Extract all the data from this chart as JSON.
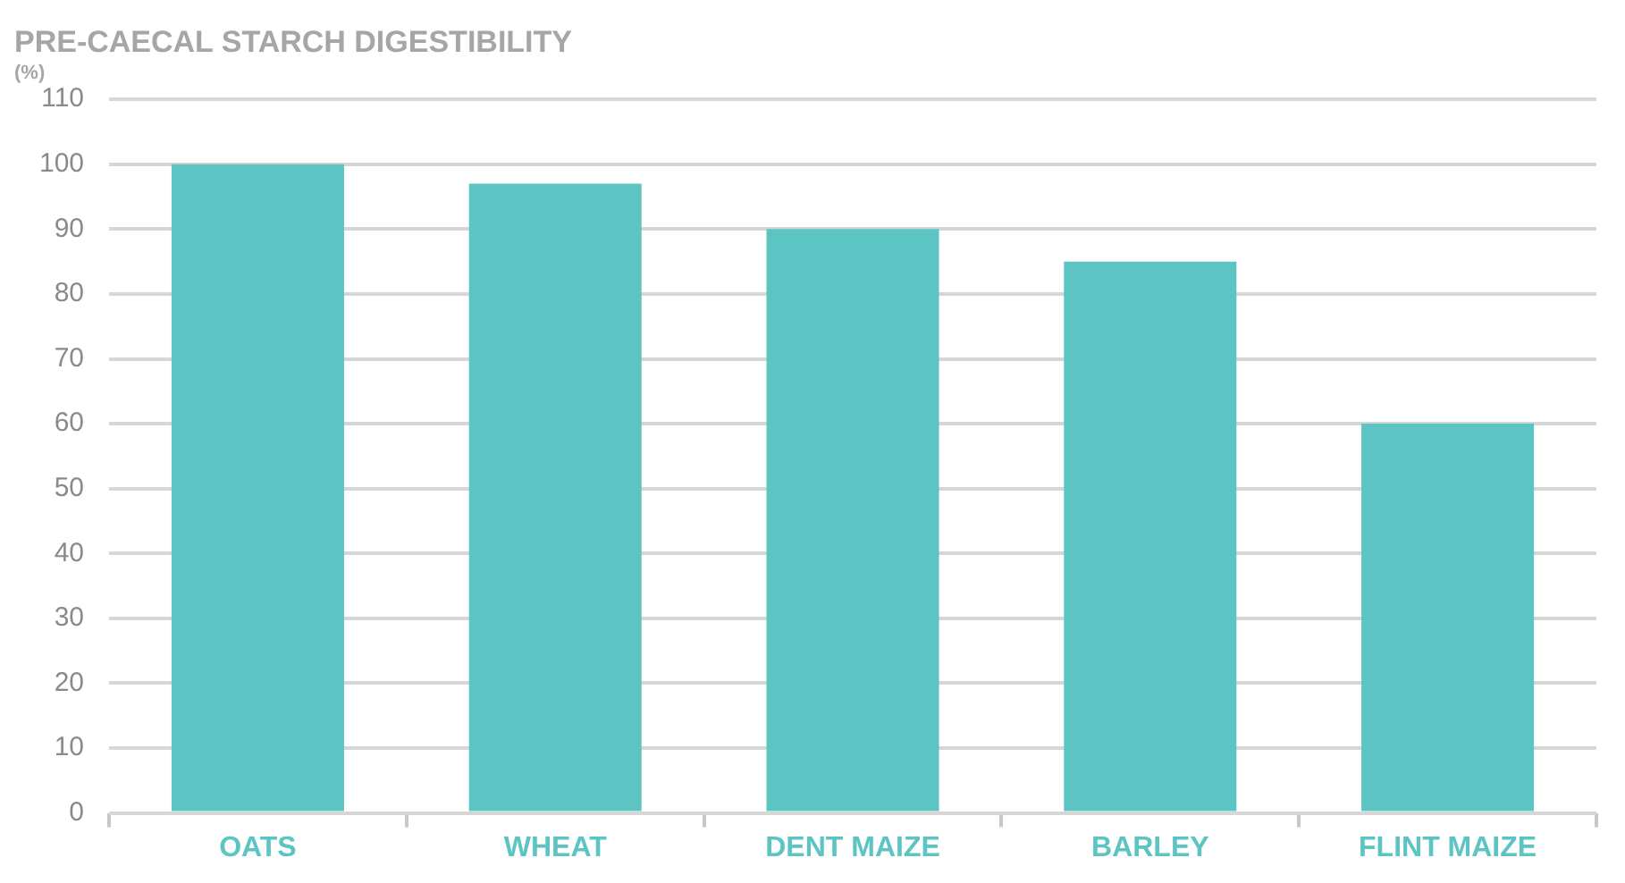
{
  "chart_data": {
    "type": "bar",
    "title": "PRE-CAECAL STARCH DIGESTIBILITY",
    "subtitle": "(%)",
    "categories": [
      "OATS",
      "WHEAT",
      "DENT MAIZE",
      "BARLEY",
      "FLINT MAIZE"
    ],
    "values": [
      100,
      97,
      90,
      85,
      60
    ],
    "color": "#5cc5c4",
    "ylim": [
      0,
      110
    ],
    "yticks": [
      0,
      10,
      20,
      30,
      40,
      50,
      60,
      70,
      80,
      90,
      100,
      110
    ],
    "grid": "y"
  }
}
